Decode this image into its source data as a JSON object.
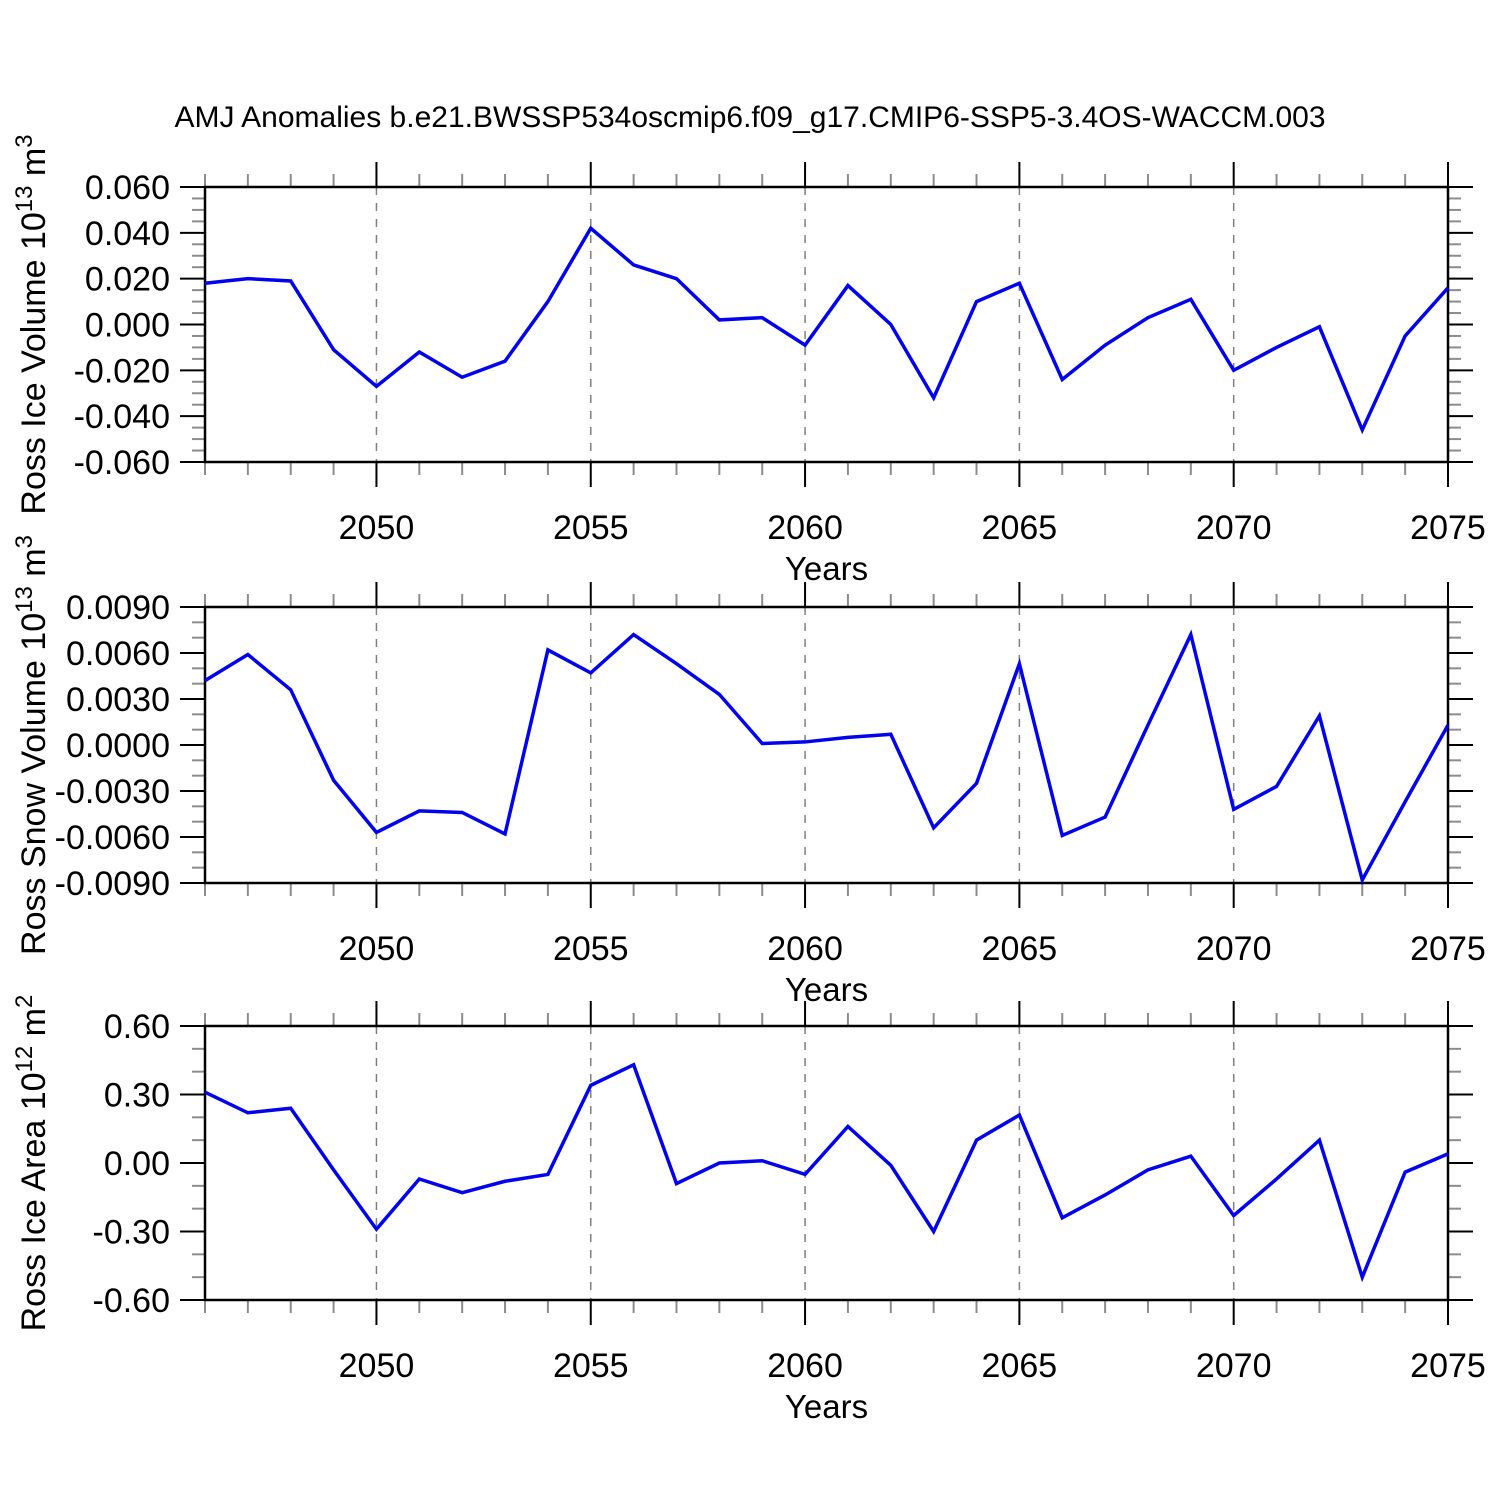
{
  "title": "AMJ Anomalies b.e21.BWSSP534oscmip6.f09_g17.CMIP6-SSP5-3.4OS-WACCM.003",
  "style": {
    "line_color": "#0202ee",
    "grid_color": "#7f7f7f",
    "minor_tick_color": "#8c8c8c",
    "axis_color": "#000000"
  },
  "chart_data": [
    {
      "id": "ross-ice-volume",
      "type": "line",
      "ylabel": "Ross Ice Volume 10^13 m^3",
      "ylabel_parts": [
        {
          "t": "Ross Ice Volume 10"
        },
        {
          "t": "13",
          "sup": true
        },
        {
          "t": " m"
        },
        {
          "t": "3",
          "sup": true
        }
      ],
      "xlabel": "Years",
      "xlim": [
        2046,
        2075
      ],
      "ylim": [
        -0.06,
        0.06
      ],
      "ytick_step": 0.02,
      "yminor_divs": 4,
      "ytick_decimals": 3,
      "xticks": [
        2050,
        2055,
        2060,
        2065,
        2070,
        2075
      ],
      "grid_x": [
        2050,
        2055,
        2060,
        2065,
        2070
      ],
      "x": [
        2046,
        2047,
        2048,
        2049,
        2050,
        2051,
        2052,
        2053,
        2054,
        2055,
        2056,
        2057,
        2058,
        2059,
        2060,
        2061,
        2062,
        2063,
        2064,
        2065,
        2066,
        2067,
        2068,
        2069,
        2070,
        2071,
        2072,
        2073,
        2074,
        2075
      ],
      "values": [
        0.018,
        0.02,
        0.019,
        -0.011,
        -0.027,
        -0.012,
        -0.023,
        -0.016,
        0.01,
        0.042,
        0.026,
        0.02,
        0.002,
        0.003,
        -0.009,
        0.017,
        0.0,
        -0.032,
        0.01,
        0.018,
        -0.024,
        -0.009,
        0.003,
        0.011,
        -0.02,
        -0.01,
        -0.001,
        -0.046,
        -0.005,
        0.016
      ]
    },
    {
      "id": "ross-snow-volume",
      "type": "line",
      "ylabel": "Ross Snow Volume 10^13 m^3",
      "ylabel_parts": [
        {
          "t": "Ross Snow Volume 10"
        },
        {
          "t": "13",
          "sup": true
        },
        {
          "t": " m"
        },
        {
          "t": "3",
          "sup": true
        }
      ],
      "xlabel": "Years",
      "xlim": [
        2046,
        2075
      ],
      "ylim": [
        -0.009,
        0.009
      ],
      "ytick_step": 0.003,
      "yminor_divs": 3,
      "ytick_decimals": 4,
      "xticks": [
        2050,
        2055,
        2060,
        2065,
        2070,
        2075
      ],
      "grid_x": [
        2050,
        2055,
        2060,
        2065,
        2070
      ],
      "x": [
        2046,
        2047,
        2048,
        2049,
        2050,
        2051,
        2052,
        2053,
        2054,
        2055,
        2056,
        2057,
        2058,
        2059,
        2060,
        2061,
        2062,
        2063,
        2064,
        2065,
        2066,
        2067,
        2068,
        2069,
        2070,
        2071,
        2072,
        2073,
        2074,
        2075
      ],
      "values": [
        0.0042,
        0.0059,
        0.0036,
        -0.0023,
        -0.0057,
        -0.0043,
        -0.0044,
        -0.0058,
        0.0062,
        0.0047,
        0.0072,
        0.0053,
        0.0033,
        0.0001,
        0.0002,
        0.0005,
        0.0007,
        -0.0054,
        -0.0025,
        0.0053,
        -0.0059,
        -0.0047,
        0.0013,
        0.0072,
        -0.0042,
        -0.0027,
        0.0019,
        -0.0088,
        -0.0037,
        0.0013
      ]
    },
    {
      "id": "ross-ice-area",
      "type": "line",
      "ylabel": "Ross Ice Area 10^12 m^2",
      "ylabel_parts": [
        {
          "t": "Ross Ice Area 10"
        },
        {
          "t": "12",
          "sup": true
        },
        {
          "t": " m"
        },
        {
          "t": "2",
          "sup": true
        }
      ],
      "xlabel": "Years",
      "xlim": [
        2046,
        2075
      ],
      "ylim": [
        -0.6,
        0.6
      ],
      "ytick_step": 0.3,
      "yminor_divs": 3,
      "ytick_decimals": 2,
      "xticks": [
        2050,
        2055,
        2060,
        2065,
        2070,
        2075
      ],
      "grid_x": [
        2050,
        2055,
        2060,
        2065,
        2070
      ],
      "x": [
        2046,
        2047,
        2048,
        2049,
        2050,
        2051,
        2052,
        2053,
        2054,
        2055,
        2056,
        2057,
        2058,
        2059,
        2060,
        2061,
        2062,
        2063,
        2064,
        2065,
        2066,
        2067,
        2068,
        2069,
        2070,
        2071,
        2072,
        2073,
        2074,
        2075
      ],
      "values": [
        0.31,
        0.22,
        0.24,
        -0.03,
        -0.29,
        -0.07,
        -0.13,
        -0.08,
        -0.05,
        0.34,
        0.43,
        -0.09,
        0.0,
        0.01,
        -0.05,
        0.16,
        -0.01,
        -0.3,
        0.1,
        0.21,
        -0.24,
        -0.14,
        -0.03,
        0.03,
        -0.23,
        -0.07,
        0.1,
        -0.5,
        -0.04,
        0.04
      ]
    }
  ]
}
